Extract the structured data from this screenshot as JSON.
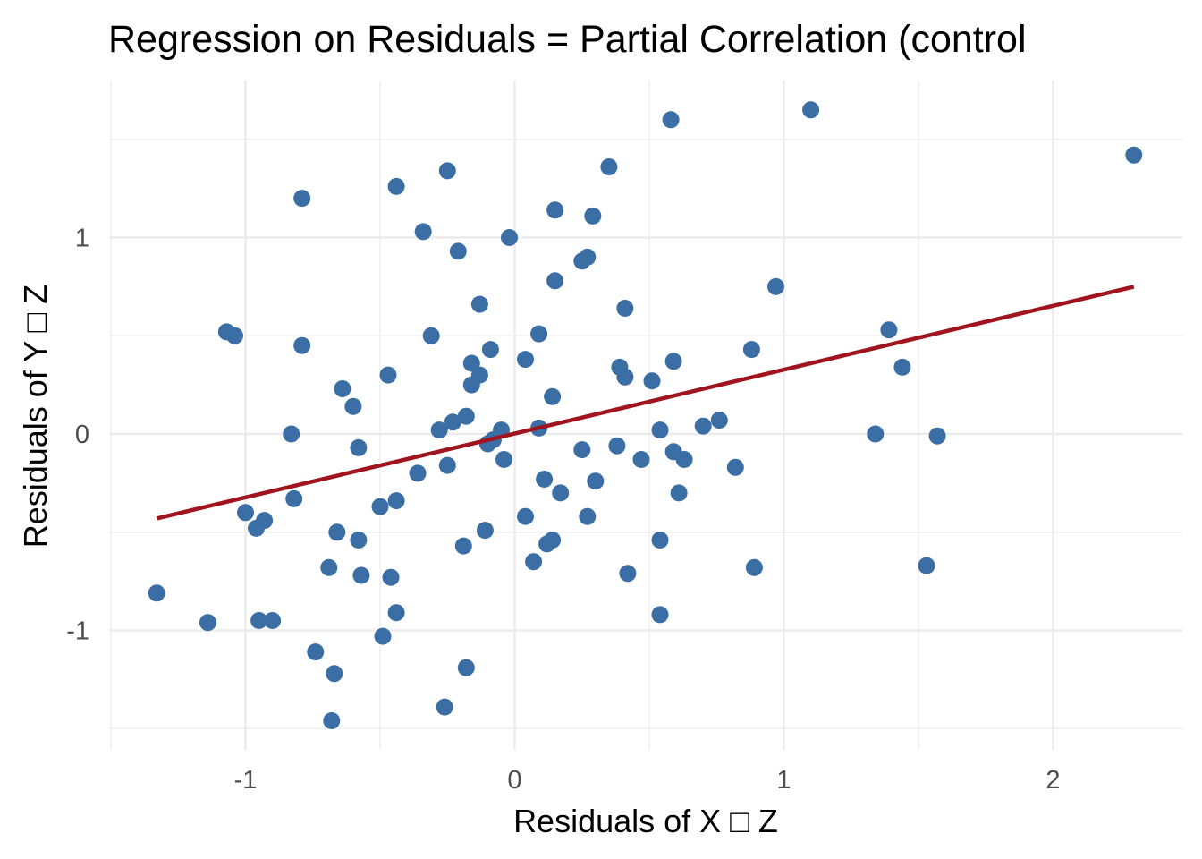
{
  "chart_data": {
    "type": "scatter",
    "title": "Regression on Residuals = Partial Correlation (control",
    "xlabel": "Residuals of X □ Z",
    "ylabel": "Residuals of Y □ Z",
    "xlim": [
      -1.5,
      2.5
    ],
    "ylim": [
      -1.6,
      1.8
    ],
    "x_ticks": [
      -1,
      0,
      1,
      2
    ],
    "y_ticks": [
      -1,
      0,
      1
    ],
    "x_tick_labels": [
      "-1",
      "0",
      "1",
      "2"
    ],
    "y_tick_labels": [
      "-1",
      "0",
      "1"
    ],
    "grid": true,
    "point_color": "#3A6EA5",
    "line_color": "#A0141E",
    "points": [
      [
        -1.33,
        -0.81
      ],
      [
        -1.14,
        -0.96
      ],
      [
        -1.07,
        0.52
      ],
      [
        -1.04,
        0.5
      ],
      [
        -1.0,
        -0.4
      ],
      [
        -0.96,
        -0.48
      ],
      [
        -0.95,
        -0.95
      ],
      [
        -0.93,
        -0.44
      ],
      [
        -0.9,
        -0.95
      ],
      [
        -0.83,
        0.0
      ],
      [
        -0.82,
        -0.33
      ],
      [
        -0.79,
        0.45
      ],
      [
        -0.79,
        1.2
      ],
      [
        -0.74,
        -1.11
      ],
      [
        -0.69,
        -0.68
      ],
      [
        -0.68,
        -1.46
      ],
      [
        -0.67,
        -1.22
      ],
      [
        -0.66,
        -0.5
      ],
      [
        -0.64,
        0.23
      ],
      [
        -0.6,
        0.14
      ],
      [
        -0.58,
        -0.54
      ],
      [
        -0.58,
        -0.07
      ],
      [
        -0.57,
        -0.72
      ],
      [
        -0.5,
        -0.37
      ],
      [
        -0.49,
        -1.03
      ],
      [
        -0.47,
        0.3
      ],
      [
        -0.46,
        -0.73
      ],
      [
        -0.44,
        -0.34
      ],
      [
        -0.44,
        -0.91
      ],
      [
        -0.44,
        1.26
      ],
      [
        -0.36,
        -0.2
      ],
      [
        -0.34,
        1.03
      ],
      [
        -0.31,
        0.5
      ],
      [
        -0.28,
        0.02
      ],
      [
        -0.26,
        -1.39
      ],
      [
        -0.25,
        1.34
      ],
      [
        -0.25,
        -0.16
      ],
      [
        -0.23,
        0.06
      ],
      [
        -0.21,
        0.93
      ],
      [
        -0.19,
        -0.57
      ],
      [
        -0.18,
        0.09
      ],
      [
        -0.18,
        -1.19
      ],
      [
        -0.16,
        0.25
      ],
      [
        -0.16,
        0.36
      ],
      [
        -0.13,
        0.66
      ],
      [
        -0.13,
        0.3
      ],
      [
        -0.11,
        -0.49
      ],
      [
        -0.1,
        -0.05
      ],
      [
        -0.09,
        0.43
      ],
      [
        -0.08,
        -0.03
      ],
      [
        -0.05,
        0.02
      ],
      [
        -0.04,
        -0.13
      ],
      [
        -0.02,
        1.0
      ],
      [
        0.04,
        0.38
      ],
      [
        0.04,
        -0.42
      ],
      [
        0.07,
        -0.65
      ],
      [
        0.09,
        0.51
      ],
      [
        0.09,
        0.03
      ],
      [
        0.11,
        -0.23
      ],
      [
        0.12,
        -0.56
      ],
      [
        0.14,
        -0.54
      ],
      [
        0.14,
        0.19
      ],
      [
        0.15,
        1.14
      ],
      [
        0.15,
        0.78
      ],
      [
        0.17,
        -0.3
      ],
      [
        0.25,
        0.88
      ],
      [
        0.25,
        -0.08
      ],
      [
        0.27,
        0.9
      ],
      [
        0.27,
        -0.42
      ],
      [
        0.29,
        1.11
      ],
      [
        0.3,
        -0.24
      ],
      [
        0.35,
        1.36
      ],
      [
        0.38,
        -0.06
      ],
      [
        0.39,
        0.34
      ],
      [
        0.41,
        0.64
      ],
      [
        0.41,
        0.29
      ],
      [
        0.42,
        -0.71
      ],
      [
        0.47,
        -0.13
      ],
      [
        0.51,
        0.27
      ],
      [
        0.54,
        0.02
      ],
      [
        0.54,
        -0.54
      ],
      [
        0.54,
        -0.92
      ],
      [
        0.58,
        1.6
      ],
      [
        0.59,
        0.37
      ],
      [
        0.59,
        -0.09
      ],
      [
        0.61,
        -0.3
      ],
      [
        0.63,
        -0.13
      ],
      [
        0.7,
        0.04
      ],
      [
        0.76,
        0.07
      ],
      [
        0.82,
        -0.17
      ],
      [
        0.88,
        0.43
      ],
      [
        0.89,
        -0.68
      ],
      [
        0.97,
        0.75
      ],
      [
        1.1,
        1.65
      ],
      [
        1.34,
        0.0
      ],
      [
        1.39,
        0.53
      ],
      [
        1.44,
        0.34
      ],
      [
        1.53,
        -0.67
      ],
      [
        1.57,
        -0.01
      ],
      [
        2.3,
        1.42
      ]
    ],
    "fit_line": {
      "x": [
        -1.33,
        2.3
      ],
      "y": [
        -0.43,
        0.75
      ]
    }
  }
}
